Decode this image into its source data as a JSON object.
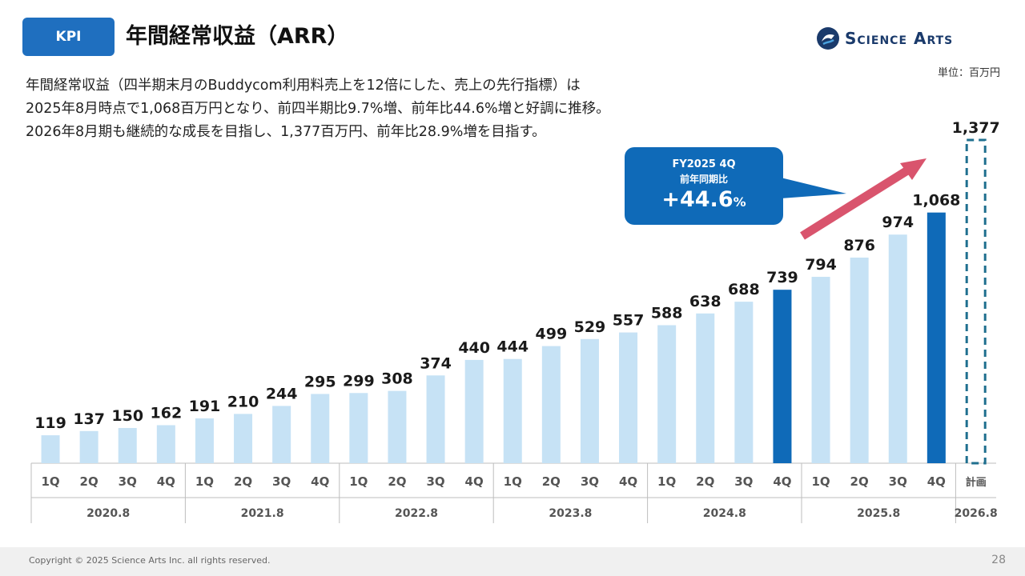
{
  "header": {
    "badge": "KPI",
    "title": "年間経常収益（ARR）",
    "logo_text": "Science Arts"
  },
  "unit_label": "単位：百万円",
  "description": [
    "年間経常収益（四半期末月のBuddycom利用料売上を12倍にした、売上の先行指標）は",
    "2025年8月時点で1,068百万円となり、前四半期比9.7%増、前年比44.6%増と好調に推移。",
    "2026年8月期も継続的な成長を目指し、1,377百万円、前年比28.9%増を目指す。"
  ],
  "callout": {
    "period": "FY2025 4Q",
    "label": "前年同期比",
    "value": "+44.6",
    "unit": "%"
  },
  "footer": {
    "copyright": "Copyright © 2025 Science Arts Inc. all rights reserved.",
    "page": "28"
  },
  "colors": {
    "bar_light": "#c6e2f5",
    "bar_dark": "#0f6ab8",
    "plan_outline": "#1f6f8f",
    "arrow": "#d9546d"
  },
  "chart_data": {
    "type": "bar",
    "title": "年間経常収益（ARR）",
    "unit": "百万円",
    "ylim": [
      0,
      1450
    ],
    "groups": [
      {
        "label": "2020.8",
        "quarters": [
          "1Q",
          "2Q",
          "3Q",
          "4Q"
        ],
        "values": [
          119,
          137,
          150,
          162
        ],
        "labels": [
          "119",
          "137",
          "150",
          "162"
        ],
        "highlight": [
          false,
          false,
          false,
          false
        ]
      },
      {
        "label": "2021.8",
        "quarters": [
          "1Q",
          "2Q",
          "3Q",
          "4Q"
        ],
        "values": [
          191,
          210,
          244,
          295
        ],
        "labels": [
          "191",
          "210",
          "244",
          "295"
        ],
        "highlight": [
          false,
          false,
          false,
          false
        ]
      },
      {
        "label": "2022.8",
        "quarters": [
          "1Q",
          "2Q",
          "3Q",
          "4Q"
        ],
        "values": [
          299,
          308,
          374,
          440
        ],
        "labels": [
          "299",
          "308",
          "374",
          "440"
        ],
        "highlight": [
          false,
          false,
          false,
          false
        ]
      },
      {
        "label": "2023.8",
        "quarters": [
          "1Q",
          "2Q",
          "3Q",
          "4Q"
        ],
        "values": [
          444,
          499,
          529,
          557
        ],
        "labels": [
          "444",
          "499",
          "529",
          "557"
        ],
        "highlight": [
          false,
          false,
          false,
          false
        ]
      },
      {
        "label": "2024.8",
        "quarters": [
          "1Q",
          "2Q",
          "3Q",
          "4Q"
        ],
        "values": [
          588,
          638,
          688,
          739
        ],
        "labels": [
          "588",
          "638",
          "688",
          "739"
        ],
        "highlight": [
          false,
          false,
          false,
          true
        ]
      },
      {
        "label": "2025.8",
        "quarters": [
          "1Q",
          "2Q",
          "3Q",
          "4Q"
        ],
        "values": [
          794,
          876,
          974,
          1068
        ],
        "labels": [
          "794",
          "876",
          "974",
          "1,068"
        ],
        "highlight": [
          false,
          false,
          false,
          true
        ]
      },
      {
        "label": "2026.8",
        "quarters": [
          "計画"
        ],
        "values": [
          1377
        ],
        "labels": [
          "1,377"
        ],
        "highlight": [
          false
        ],
        "plan": true
      }
    ]
  }
}
